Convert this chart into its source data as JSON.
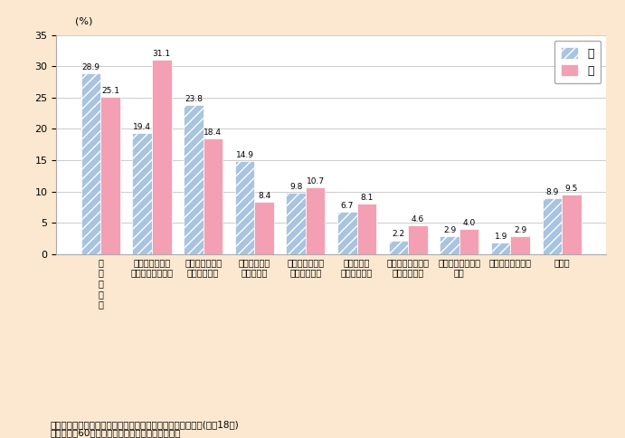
{
  "male_values": [
    28.9,
    19.4,
    23.8,
    14.9,
    9.8,
    6.7,
    2.2,
    2.9,
    1.9,
    8.9
  ],
  "female_values": [
    25.1,
    31.1,
    18.4,
    8.4,
    10.7,
    8.1,
    4.6,
    4.0,
    2.9,
    9.5
  ],
  "male_color": "#a8c4e0",
  "female_color": "#f4a0b4",
  "male_hatch": "///",
  "background_color": "#fce8d0",
  "plot_bg_color": "#ffffff",
  "ylabel": "(%)",
  "ylim": [
    0,
    35
  ],
  "yticks": [
    0,
    5,
    10,
    15,
    20,
    25,
    30,
    35
  ],
  "legend_male": "男",
  "legend_female": "女",
  "cat_labels": [
    "関\n心\nが\nな\nい",
    "健康上の理由、\n体力に自信がない",
    "時間的・精神的\nゆとりがない",
    "他にやりたい\nことがある",
    "やりたい活動が\n見つからない",
    "適当な場が\n見つからない",
    "一緒にやる仲間が\n見つからない",
    "家族の介護をして\nいる",
    "経済的余裕がない",
    "その他"
  ],
  "footnote1": "資料：内閣府「高齢者の生活と意識に関する国際比較調査」(平成18年)",
  "footnote2": "（注）全国60歳以上の男女を対象とした調査結果"
}
